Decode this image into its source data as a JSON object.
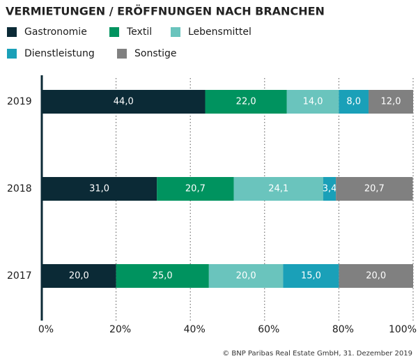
{
  "chart_data": {
    "type": "stacked-bar-horizontal",
    "title": "VERMIETUNGEN / ERÖFFNUNGEN NACH BRANCHEN",
    "categories": [
      "2019",
      "2018",
      "2017"
    ],
    "series": [
      {
        "name": "Gastronomie",
        "color": "#0b2a36",
        "values": [
          44.0,
          31.0,
          20.0
        ],
        "value_labels": [
          "44,0",
          "31,0",
          "20,0"
        ]
      },
      {
        "name": "Textil",
        "color": "#00935f",
        "values": [
          22.0,
          20.7,
          25.0
        ],
        "value_labels": [
          "22,0",
          "20,7",
          "25,0"
        ]
      },
      {
        "name": "Lebensmittel",
        "color": "#6ac4bd",
        "values": [
          14.0,
          24.1,
          20.0
        ],
        "value_labels": [
          "14,0",
          "24,1",
          "20,0"
        ]
      },
      {
        "name": "Dienstleistung",
        "color": "#1aa0b8",
        "values": [
          8.0,
          3.4,
          15.0
        ],
        "value_labels": [
          "8,0",
          "3,4",
          "15,0"
        ]
      },
      {
        "name": "Sonstige",
        "color": "#808080",
        "values": [
          12.0,
          20.7,
          20.0
        ],
        "value_labels": [
          "12,0",
          "20,7",
          "20,0"
        ]
      }
    ],
    "xlim": [
      0,
      100
    ],
    "xticks": [
      {
        "value": 0,
        "label": "0%"
      },
      {
        "value": 20,
        "label": "20%"
      },
      {
        "value": 40,
        "label": "40%"
      },
      {
        "value": 60,
        "label": "60%"
      },
      {
        "value": 80,
        "label": "80%"
      },
      {
        "value": 100,
        "label": "100%"
      }
    ],
    "grid": true,
    "source": "© BNP Paribas Real Estate GmbH, 31. Dezember 2019"
  }
}
